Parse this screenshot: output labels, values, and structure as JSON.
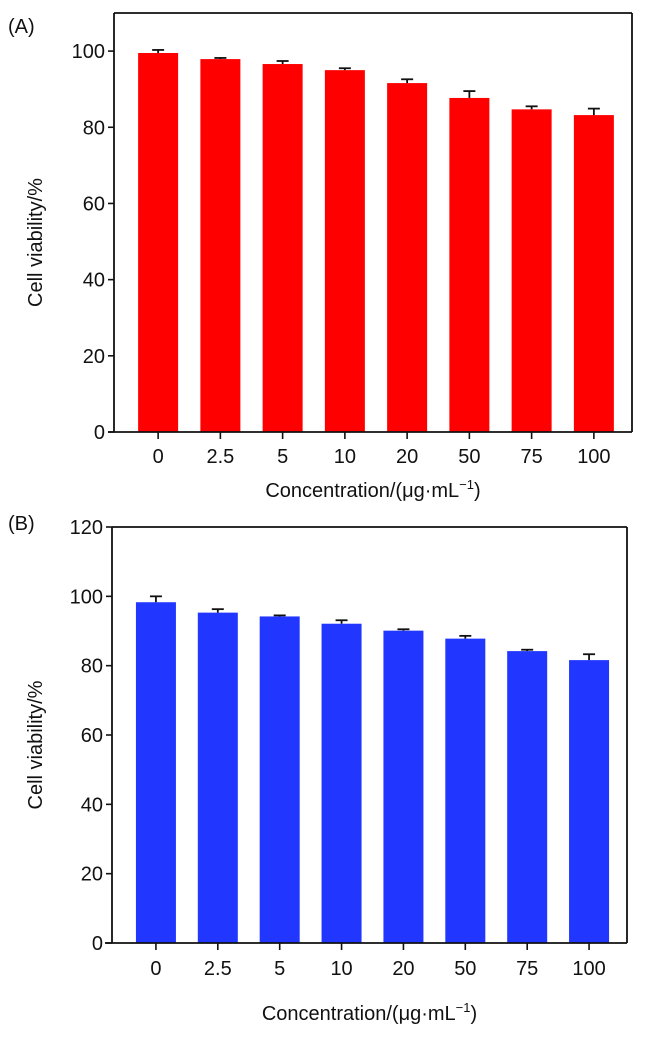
{
  "chart_data": [
    {
      "type": "bar",
      "panel_label": "(A)",
      "categories": [
        "0",
        "2.5",
        "5",
        "10",
        "20",
        "50",
        "75",
        "100"
      ],
      "values": [
        99.5,
        97.9,
        96.6,
        95.0,
        91.6,
        87.7,
        84.7,
        83.2
      ],
      "errors": [
        0.8,
        0.3,
        0.8,
        0.5,
        1.0,
        1.8,
        0.8,
        1.7
      ],
      "ylabel": "Cell viability/%",
      "xlabel": "Concentration/(μg·mL",
      "xlabel_sup": "−1",
      "xlabel_close": ")",
      "ylim": [
        0,
        110
      ],
      "yticks": [
        0,
        20,
        40,
        60,
        80,
        100
      ],
      "color": "#ff0000",
      "grid": false
    },
    {
      "type": "bar",
      "panel_label": "(B)",
      "categories": [
        "0",
        "2.5",
        "5",
        "10",
        "20",
        "50",
        "75",
        "100"
      ],
      "values": [
        98.3,
        95.3,
        94.2,
        92.1,
        90.1,
        87.8,
        84.2,
        81.6
      ],
      "errors": [
        1.7,
        1.0,
        0.3,
        1.0,
        0.4,
        0.8,
        0.4,
        1.7
      ],
      "ylabel": "Cell viability/%",
      "xlabel": "Concentration/(μg·mL",
      "xlabel_sup": "−1",
      "xlabel_close": ")",
      "ylim": [
        0,
        120
      ],
      "yticks": [
        0,
        20,
        40,
        60,
        80,
        100,
        120
      ],
      "color": "#2137ff",
      "grid": false
    }
  ]
}
